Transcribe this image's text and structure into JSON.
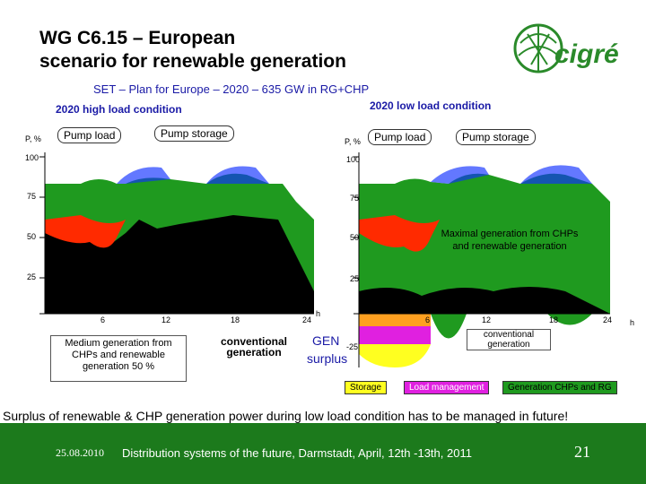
{
  "slide": {
    "title_line1": "WG C6.15 – European",
    "title_line2": "scenario for renewable generation",
    "subtitle": "SET – Plan for Europe – 2020 – 635 GW in RG+CHP",
    "logo_text": "cigré"
  },
  "left_chart": {
    "condition": "2020 high load condition",
    "axis_unit": "P, %",
    "pump_load": "Pump load",
    "pump_storage": "Pump storage",
    "y_ticks": [
      "100",
      "75",
      "50",
      "25"
    ],
    "x_ticks": [
      "6",
      "12",
      "18",
      "24"
    ],
    "hour_unit": "h",
    "note": "Medium generation from CHPs and renewable generation 50 %"
  },
  "right_chart": {
    "condition": "2020 low load condition",
    "axis_unit": "P, %",
    "pump_load": "Pump load",
    "pump_storage": "Pump storage",
    "y_ticks": [
      "100",
      "75",
      "50",
      "25"
    ],
    "neg_tick": "-25",
    "x_ticks": [
      "6",
      "12",
      "18",
      "24"
    ],
    "hour_unit": "h",
    "note": "Maximal generation from CHPs and renewable generation"
  },
  "middle": {
    "conventional": "conventional generation",
    "gen_surplus_1": "GEN",
    "gen_surplus_2": "surplus",
    "conventional_right": "conventional generation"
  },
  "legend": {
    "storage": "Storage",
    "load_management": "Load management",
    "generation": "Generation CHPs and RG"
  },
  "bottom_note": "Surplus of renewable & CHP generation power during low load condition has to be managed in future!",
  "footer": {
    "date": "25.08.2010",
    "text": "Distribution systems of the future, Darmstadt, April, 12th -13th, 2011",
    "page": "21"
  },
  "colors": {
    "green": "#1f9a1f",
    "black": "#000000",
    "red": "#ff2a00",
    "blue": "#1030ff",
    "magenta": "#e020e0",
    "yellow": "#ffff20",
    "orange": "#ffa020",
    "footer": "#1c7a1c"
  }
}
